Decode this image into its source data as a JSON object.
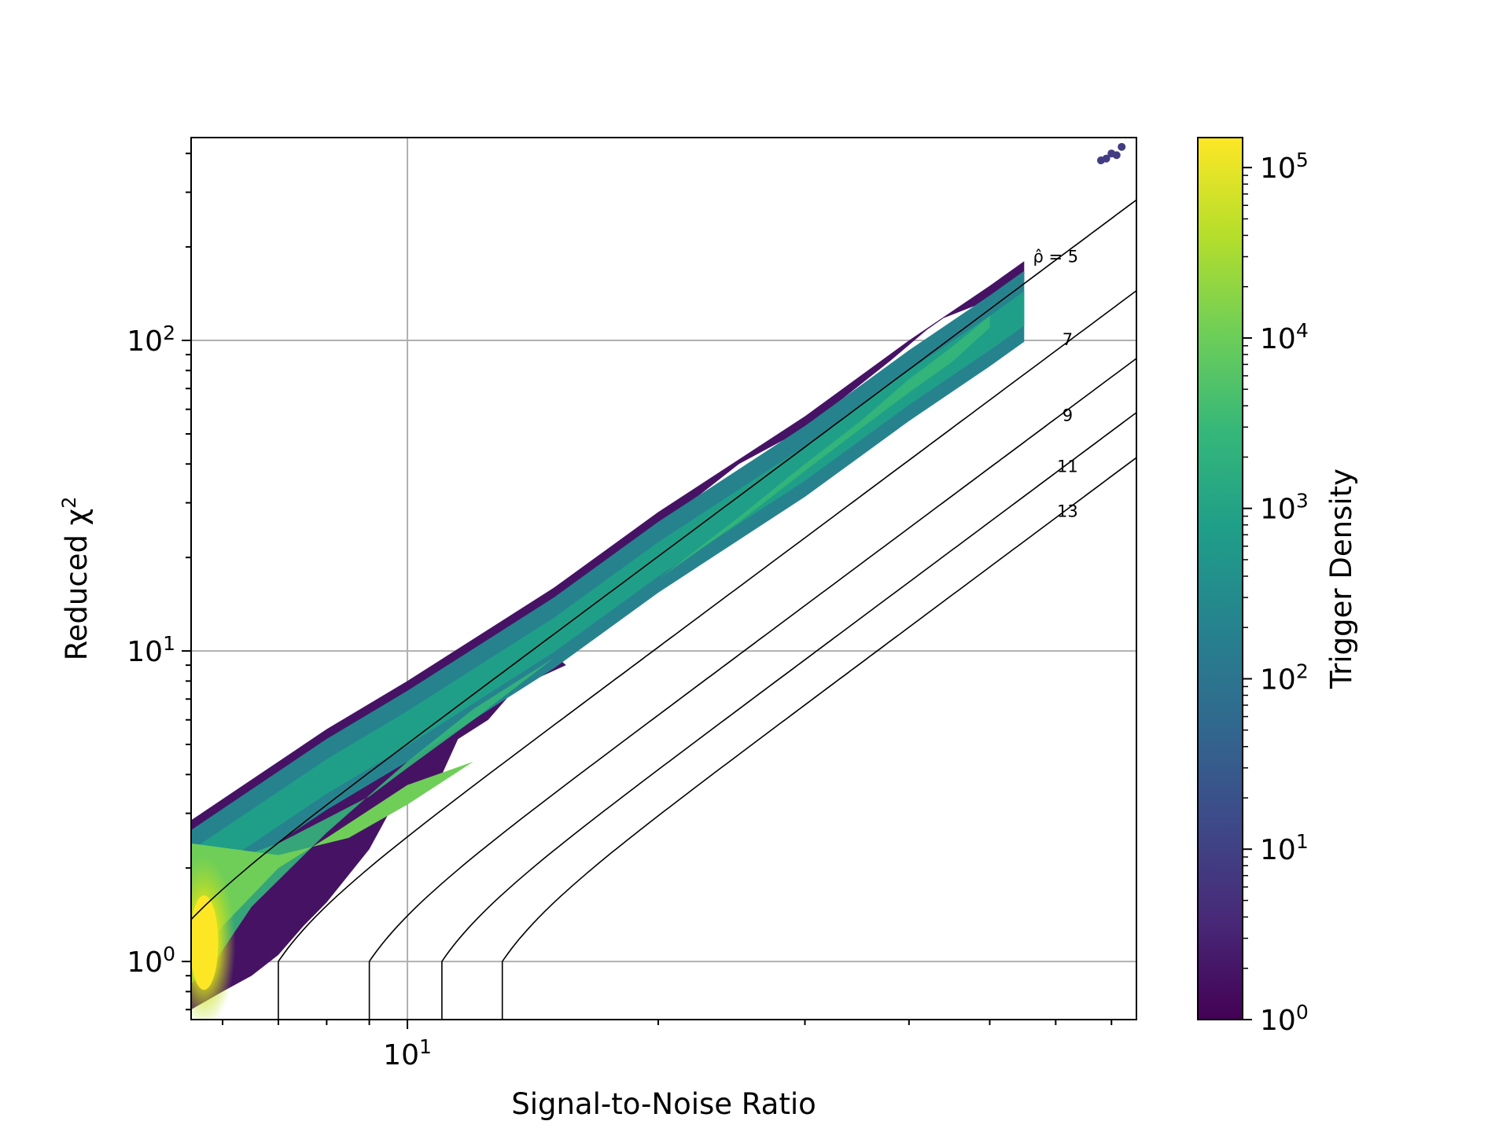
{
  "chart_data": {
    "type": "heatmap",
    "subtype": "hexbin-density-with-contours",
    "title": "",
    "xlabel": "Signal-to-Noise Ratio",
    "ylabel": "Reduced χ²",
    "ylabel_base": "Reduced χ",
    "ylabel_sup": "2",
    "xscale": "log",
    "yscale": "log",
    "xlim": [
      5.5,
      75
    ],
    "ylim": [
      0.65,
      450
    ],
    "grid": true,
    "x_ticks": [
      {
        "value": 10,
        "base": "10",
        "exp": "1"
      }
    ],
    "x_minor_ticks": [
      6,
      7,
      8,
      9,
      20,
      30,
      40,
      50,
      60,
      70
    ],
    "y_ticks": [
      {
        "value": 1,
        "base": "10",
        "exp": "0"
      },
      {
        "value": 10,
        "base": "10",
        "exp": "1"
      },
      {
        "value": 100,
        "base": "10",
        "exp": "2"
      }
    ],
    "y_minor_ticks": [
      0.7,
      0.8,
      0.9,
      2,
      3,
      4,
      5,
      6,
      7,
      8,
      9,
      20,
      30,
      40,
      50,
      60,
      70,
      80,
      90,
      200,
      300,
      400
    ],
    "density_region": {
      "upper_edge": [
        [
          5.5,
          2.85
        ],
        [
          8,
          5.6
        ],
        [
          10,
          8.0
        ],
        [
          15,
          16
        ],
        [
          20,
          28
        ],
        [
          30,
          57
        ],
        [
          40,
          100
        ],
        [
          50,
          150
        ],
        [
          55,
          180
        ]
      ],
      "lower_edge": [
        [
          55,
          155
        ],
        [
          50,
          135
        ],
        [
          44,
          118
        ],
        [
          42,
          108
        ],
        [
          38,
          86
        ],
        [
          30,
          52
        ],
        [
          25,
          40
        ],
        [
          20,
          25
        ],
        [
          16,
          15
        ],
        [
          14,
          11.5
        ],
        [
          15.5,
          9.0
        ],
        [
          13.5,
          7.6
        ],
        [
          12.5,
          6.0
        ],
        [
          11.5,
          5.2
        ],
        [
          11,
          4.0
        ],
        [
          10,
          3.2
        ],
        [
          9.5,
          3.0
        ],
        [
          9,
          2.3
        ],
        [
          8,
          1.55
        ],
        [
          7.5,
          1.3
        ],
        [
          7,
          1.05
        ],
        [
          6.5,
          0.9
        ],
        [
          6,
          0.8
        ],
        [
          5.5,
          0.7
        ]
      ],
      "core_edge": [
        [
          5.5,
          1.9
        ],
        [
          7,
          2.4
        ],
        [
          9,
          3.4
        ],
        [
          10,
          4.2
        ],
        [
          12,
          6.0
        ],
        [
          15,
          9.5
        ],
        [
          20,
          17
        ],
        [
          25,
          27
        ],
        [
          30,
          40
        ],
        [
          35,
          55
        ],
        [
          40,
          75
        ],
        [
          45,
          95
        ],
        [
          50,
          120
        ],
        [
          50,
          110
        ],
        [
          45,
          85
        ],
        [
          40,
          68
        ],
        [
          35,
          52
        ],
        [
          30,
          38
        ],
        [
          25,
          26
        ],
        [
          20,
          17
        ],
        [
          15,
          9.5
        ],
        [
          12,
          6.5
        ],
        [
          10,
          4.4
        ],
        [
          8,
          2.6
        ],
        [
          6.5,
          1.5
        ],
        [
          5.8,
          0.95
        ],
        [
          5.5,
          0.85
        ]
      ],
      "bright_spot": {
        "x": 5.7,
        "y": 1.15
      }
    },
    "outlier_cluster": {
      "points": [
        [
          68,
          380
        ],
        [
          70,
          400
        ],
        [
          72,
          420
        ],
        [
          71,
          395
        ],
        [
          69,
          385
        ]
      ]
    },
    "contours": [
      {
        "label": "ρ̂ = 5",
        "label_display_base": "ρ̂",
        "label_display_rest": " = 5",
        "rho": 5,
        "label_at": [
          60,
          185
        ]
      },
      {
        "label": "7",
        "rho": 7,
        "label_at": [
          62,
          100
        ]
      },
      {
        "label": "9",
        "rho": 9,
        "label_at": [
          62,
          57
        ]
      },
      {
        "label": "11",
        "rho": 11,
        "label_at": [
          62,
          39
        ]
      },
      {
        "label": "13",
        "rho": 13,
        "label_at": [
          62,
          28
        ]
      }
    ],
    "colorbar": {
      "label": "Trigger Density",
      "scale": "log",
      "colormap": "viridis",
      "range": [
        1,
        150000
      ],
      "ticks": [
        {
          "value": 1,
          "base": "10",
          "exp": "0"
        },
        {
          "value": 10,
          "base": "10",
          "exp": "1"
        },
        {
          "value": 100,
          "base": "10",
          "exp": "2"
        },
        {
          "value": 1000,
          "base": "10",
          "exp": "3"
        },
        {
          "value": 10000,
          "base": "10",
          "exp": "4"
        },
        {
          "value": 100000,
          "base": "10",
          "exp": "5"
        }
      ]
    },
    "colors": {
      "viridis": [
        "#440154",
        "#482878",
        "#3e4989",
        "#31688e",
        "#26828e",
        "#1f9e89",
        "#35b779",
        "#6ece58",
        "#b5de2b",
        "#fde725"
      ],
      "grid": "#b0b0b0",
      "contour": "#000000"
    }
  }
}
